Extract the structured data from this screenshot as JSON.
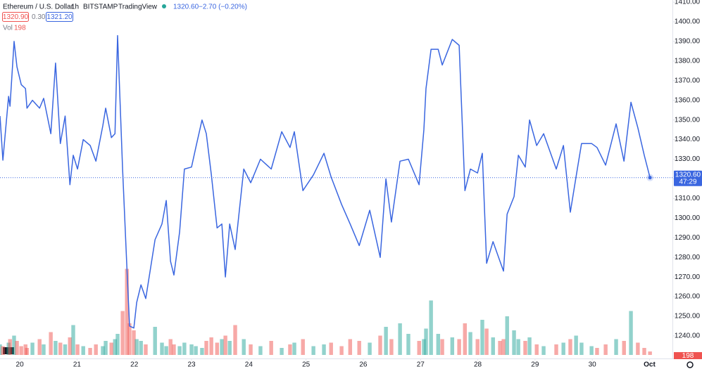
{
  "chart_data": {
    "type": "line",
    "header": {
      "symbol": "Ethereum / U.S. Dollar",
      "interval": "1h",
      "exchange": "BITSTAMP",
      "source": "TradingView",
      "change": "−2.70 (−0.20%)",
      "bid": "1320.90",
      "spread": "0.30",
      "ask": "1321.20",
      "volume_label": "Vol"
    },
    "last_price": {
      "value": 1320.6,
      "label": "1320.60"
    },
    "countdown": "47:29",
    "x": [
      -8.3,
      -7.1,
      -4.7,
      -4.1,
      -2.4,
      -1.2,
      0.6,
      2.4,
      3,
      5.3,
      8.3,
      10,
      13,
      15,
      17,
      19,
      21,
      22.4,
      24.2,
      26.6,
      29.5,
      31.9,
      34.8,
      36,
      38.4,
      39.9,
      41,
      43.1,
      44.9,
      46,
      47.8,
      49,
      50.8,
      52.8,
      56.7,
      59.6,
      61.4,
      63.2,
      64.6,
      67,
      69,
      72,
      73.8,
      76.4,
      78.2,
      80.3,
      82.7,
      84.7,
      86.2,
      88,
      90.3,
      93.9,
      96.8,
      100.9,
      105.4,
      109.8,
      113.3,
      115.1,
      118.7,
      123.1,
      127.5,
      130.5,
      134.9,
      138.5,
      142.3,
      146.7,
      151.1,
      153.5,
      155.8,
      159.4,
      162.9,
      167.4,
      169.4,
      170.3,
      172.4,
      175.4,
      177.1,
      181.3,
      184.2,
      186.6,
      188.9,
      191.9,
      193.9,
      195.7,
      198.4,
      201.3,
      202.8,
      204.3,
      207.2,
      209,
      211.9,
      213.7,
      216.7,
      219.6,
      224.9,
      227.9,
      230.8,
      233.2,
      235.5,
      239.7,
      242,
      245.6,
      250,
      253.3,
      256.2,
      259.1,
      261.8,
      264.2
    ],
    "series": [
      {
        "name": "ETHUSD",
        "color": "#3a66e0",
        "values": [
          1352,
          1329.5,
          1362,
          1357,
          1390,
          1377,
          1368,
          1366,
          1356,
          1360,
          1356,
          1361,
          1343,
          1379,
          1338,
          1352,
          1317,
          1332,
          1325,
          1340,
          1337,
          1329,
          1347,
          1356,
          1341,
          1343,
          1393,
          1325,
          1275,
          1245,
          1244,
          1257,
          1266,
          1259,
          1289,
          1297,
          1309,
          1278,
          1271,
          1293,
          1325,
          1326,
          1336,
          1350,
          1343,
          1322,
          1295,
          1297,
          1270,
          1297,
          1284,
          1325,
          1318,
          1330,
          1325,
          1344,
          1336,
          1344,
          1314,
          1322,
          1333,
          1321,
          1307,
          1297,
          1286,
          1304,
          1280,
          1320,
          1298,
          1329,
          1330,
          1317,
          1345,
          1366,
          1386,
          1386,
          1378,
          1391,
          1388,
          1314,
          1325,
          1323,
          1333,
          1277,
          1288,
          1278,
          1273,
          1302,
          1311,
          1332,
          1326,
          1350,
          1337,
          1343,
          1325,
          1337,
          1303,
          1321,
          1338,
          1338,
          1336,
          1327,
          1348,
          1329,
          1359,
          1346,
          1332,
          1320.6
        ]
      },
      {
        "name": "Vol",
        "axis": "volume",
        "up_color": "rgba(38,166,154,0.5)",
        "down_color": "rgba(239,83,80,0.5)",
        "values": [
          600,
          500,
          700,
          900,
          1100,
          800,
          500,
          600,
          400,
          700,
          900,
          600,
          1300,
          800,
          700,
          600,
          1000,
          1700,
          600,
          500,
          400,
          600,
          500,
          800,
          700,
          900,
          1200,
          2500,
          4900,
          1800,
          1400,
          900,
          800,
          600,
          1600,
          700,
          500,
          900,
          600,
          500,
          700,
          600,
          500,
          400,
          800,
          1000,
          700,
          900,
          1100,
          800,
          1700,
          900,
          600,
          500,
          800,
          400,
          600,
          700,
          900,
          500,
          600,
          700,
          500,
          900,
          800,
          700,
          1100,
          1600,
          900,
          1800,
          1200,
          800,
          900,
          1500,
          3100,
          1200,
          900,
          1000,
          900,
          1800,
          1300,
          900,
          2000,
          1500,
          1000,
          800,
          900,
          2200,
          1400,
          900,
          800,
          1000,
          600,
          500,
          600,
          700,
          900,
          1100,
          700,
          500,
          400,
          600,
          900,
          800,
          2500,
          700,
          400,
          198
        ]
      }
    ],
    "xlim": [
      -8.3,
      273.6
    ],
    "xticks": [
      {
        "value": 0,
        "label": "20"
      },
      {
        "value": 24,
        "label": "21"
      },
      {
        "value": 48,
        "label": "22"
      },
      {
        "value": 72,
        "label": "23"
      },
      {
        "value": 96,
        "label": "24"
      },
      {
        "value": 120,
        "label": "25"
      },
      {
        "value": 144,
        "label": "26"
      },
      {
        "value": 168,
        "label": "27"
      },
      {
        "value": 192,
        "label": "28"
      },
      {
        "value": 216,
        "label": "29"
      },
      {
        "value": 240,
        "label": "30"
      },
      {
        "value": 264,
        "label": "Oct"
      }
    ],
    "ylim": [
      1230.3,
      1411.1
    ],
    "yticks": [
      {
        "value": 1240,
        "label": "1240.00"
      },
      {
        "value": 1250,
        "label": "1250.00"
      },
      {
        "value": 1260,
        "label": "1260.00"
      },
      {
        "value": 1270,
        "label": "1270.00"
      },
      {
        "value": 1280,
        "label": "1280.00"
      },
      {
        "value": 1290,
        "label": "1290.00"
      },
      {
        "value": 1300,
        "label": "1300.00"
      },
      {
        "value": 1310,
        "label": "1310.00"
      },
      {
        "value": 1320,
        "label": "1320.00"
      },
      {
        "value": 1330,
        "label": "1330.00"
      },
      {
        "value": 1340,
        "label": "1340.00"
      },
      {
        "value": 1350,
        "label": "1350.00"
      },
      {
        "value": 1360,
        "label": "1360.00"
      },
      {
        "value": 1370,
        "label": "1370.00"
      },
      {
        "value": 1380,
        "label": "1380.00"
      },
      {
        "value": 1390,
        "label": "1390.00"
      },
      {
        "value": 1400,
        "label": "1400.00"
      },
      {
        "value": 1410,
        "label": "1410.00"
      }
    ],
    "volume_lim": [
      0,
      6000
    ],
    "grid": false
  }
}
